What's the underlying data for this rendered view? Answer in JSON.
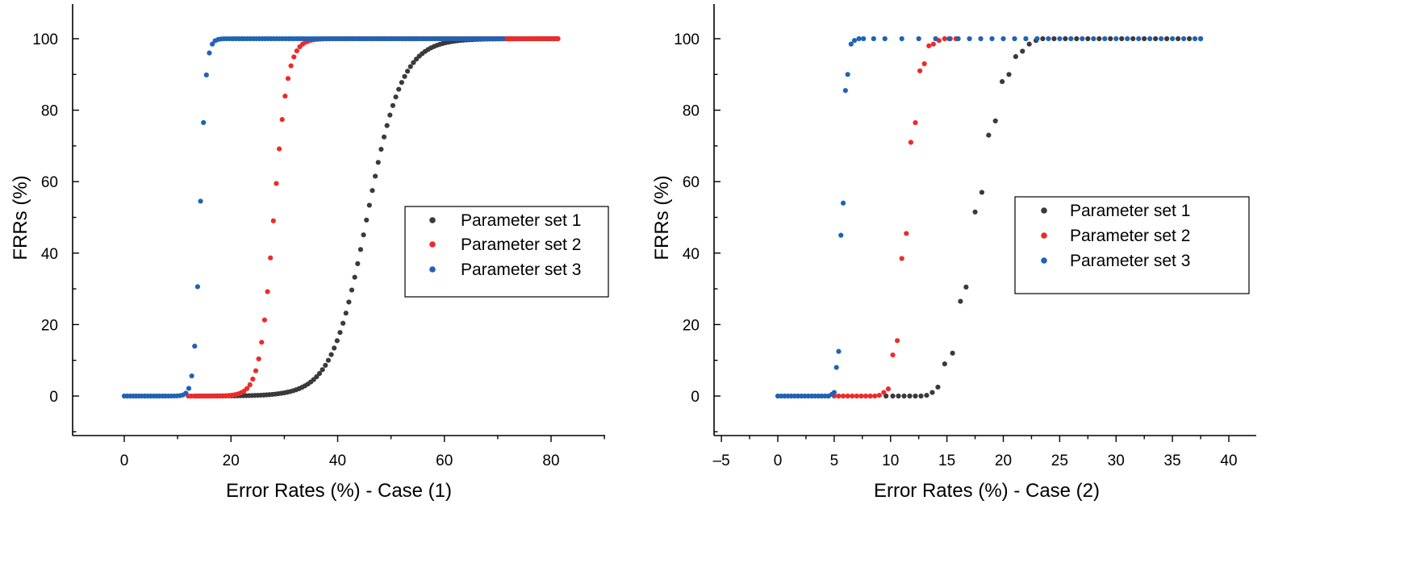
{
  "colors": {
    "series_1": "#3a3a3a",
    "series_2": "#ee2a2a",
    "series_3": "#1f63b4",
    "axis": "#000000"
  },
  "chart_data": [
    {
      "type": "scatter",
      "title": "",
      "xlabel": "Error Rates (%) - Case (1)",
      "ylabel": "FRRs (%)",
      "xlim": [
        -10,
        90
      ],
      "ylim": [
        -10,
        110
      ],
      "xticks": [
        0,
        20,
        40,
        60,
        80
      ],
      "yticks": [
        0,
        20,
        40,
        60,
        80,
        100
      ],
      "xtick_labels": [
        "0",
        "20",
        "40",
        "60",
        "80"
      ],
      "ytick_labels": [
        "0",
        "20",
        "40",
        "60",
        "80",
        "100"
      ],
      "legend_position": "center-right",
      "series": [
        {
          "name": "Parameter set 1",
          "color_key": "series_1",
          "curve": {
            "x_start": 13.5,
            "x_end": 81.5,
            "step": 0.55,
            "center": 45.5,
            "scale": 3.3
          }
        },
        {
          "name": "Parameter set 2",
          "color_key": "series_2",
          "curve": {
            "x_start": 12.0,
            "x_end": 81.5,
            "step": 0.55,
            "center": 28.0,
            "scale": 1.3
          }
        },
        {
          "name": "Parameter set 3",
          "color_key": "series_3",
          "curve": {
            "x_start": 0.0,
            "x_end": 71.0,
            "step": 0.55,
            "center": 14.2,
            "scale": 0.55
          }
        }
      ]
    },
    {
      "type": "scatter",
      "title": "",
      "xlabel": "Error Rates (%) - Case (2)",
      "ylabel": "FRRs (%)",
      "xlim": [
        -5,
        42.5
      ],
      "ylim": [
        -10,
        110
      ],
      "xticks": [
        -5,
        0,
        5,
        10,
        15,
        20,
        25,
        30,
        35,
        40
      ],
      "yticks": [
        0,
        20,
        40,
        60,
        80,
        100
      ],
      "xtick_labels": [
        "–5",
        "0",
        "5",
        "10",
        "15",
        "20",
        "25",
        "30",
        "35",
        "40"
      ],
      "ytick_labels": [
        "0",
        "20",
        "40",
        "60",
        "80",
        "100"
      ],
      "legend_position": "center-right",
      "series": [
        {
          "name": "Parameter set 1",
          "color_key": "series_1",
          "points": [
            [
              9.6,
              0
            ],
            [
              10.2,
              0
            ],
            [
              10.7,
              0
            ],
            [
              11.2,
              0
            ],
            [
              11.7,
              0
            ],
            [
              12.2,
              0
            ],
            [
              12.7,
              0
            ],
            [
              13.2,
              0.2
            ],
            [
              13.7,
              1
            ],
            [
              14.2,
              2.5
            ],
            [
              14.8,
              9
            ],
            [
              15.5,
              12
            ],
            [
              16.2,
              26.5
            ],
            [
              16.7,
              30.5
            ],
            [
              17.5,
              51.5
            ],
            [
              18.1,
              57
            ],
            [
              18.7,
              73
            ],
            [
              19.3,
              77
            ],
            [
              19.9,
              88
            ],
            [
              20.5,
              90
            ],
            [
              21.1,
              95
            ],
            [
              21.7,
              96.5
            ],
            [
              22.3,
              98.5
            ],
            [
              22.9,
              99.5
            ],
            [
              23.5,
              100
            ],
            [
              24.5,
              100
            ],
            [
              25.5,
              100
            ],
            [
              26.5,
              100
            ],
            [
              27.5,
              100
            ],
            [
              28.5,
              100
            ],
            [
              29.5,
              100
            ],
            [
              30.5,
              100
            ],
            [
              31.5,
              100
            ],
            [
              32.5,
              100
            ],
            [
              33.5,
              100
            ],
            [
              34.5,
              100
            ],
            [
              35.5,
              100
            ],
            [
              36.5,
              100
            ],
            [
              37.5,
              100
            ]
          ]
        },
        {
          "name": "Parameter set 2",
          "color_key": "series_2",
          "points": [
            [
              5,
              0
            ],
            [
              5.4,
              0
            ],
            [
              5.8,
              0
            ],
            [
              6.2,
              0
            ],
            [
              6.6,
              0
            ],
            [
              7,
              0
            ],
            [
              7.4,
              0
            ],
            [
              7.8,
              0
            ],
            [
              8.2,
              0
            ],
            [
              8.6,
              0
            ],
            [
              9,
              0.2
            ],
            [
              9.4,
              1
            ],
            [
              9.8,
              2
            ],
            [
              10.2,
              11.5
            ],
            [
              10.6,
              15.5
            ],
            [
              11,
              38.5
            ],
            [
              11.4,
              45.5
            ],
            [
              11.8,
              71
            ],
            [
              12.2,
              76.5
            ],
            [
              12.6,
              91
            ],
            [
              13,
              93
            ],
            [
              13.4,
              98
            ],
            [
              13.8,
              98.5
            ],
            [
              14.3,
              99.5
            ],
            [
              14.8,
              100
            ],
            [
              15.3,
              100
            ],
            [
              15.8,
              100
            ]
          ]
        },
        {
          "name": "Parameter set 3",
          "color_key": "series_3",
          "points": [
            [
              0,
              0
            ],
            [
              0.3,
              0
            ],
            [
              0.6,
              0
            ],
            [
              0.9,
              0
            ],
            [
              1.2,
              0
            ],
            [
              1.5,
              0
            ],
            [
              1.8,
              0
            ],
            [
              2.1,
              0
            ],
            [
              2.4,
              0
            ],
            [
              2.7,
              0
            ],
            [
              3,
              0
            ],
            [
              3.3,
              0
            ],
            [
              3.6,
              0
            ],
            [
              3.9,
              0
            ],
            [
              4.2,
              0
            ],
            [
              4.5,
              0
            ],
            [
              4.8,
              0.5
            ],
            [
              5,
              1
            ],
            [
              5.2,
              8
            ],
            [
              5.4,
              12.5
            ],
            [
              5.6,
              45
            ],
            [
              5.8,
              54
            ],
            [
              6,
              85.5
            ],
            [
              6.2,
              90
            ],
            [
              6.5,
              98.5
            ],
            [
              6.8,
              99.5
            ],
            [
              7.2,
              100
            ],
            [
              7.6,
              100
            ],
            [
              8.5,
              100
            ],
            [
              9.5,
              100
            ],
            [
              11,
              100
            ],
            [
              12.5,
              100
            ],
            [
              14,
              100
            ],
            [
              15.2,
              100
            ],
            [
              16,
              100
            ],
            [
              17,
              100
            ],
            [
              18,
              100
            ],
            [
              19,
              100
            ],
            [
              20,
              100
            ],
            [
              21,
              100
            ],
            [
              22,
              100
            ],
            [
              23,
              100
            ],
            [
              24,
              100
            ],
            [
              25,
              100
            ],
            [
              26,
              100
            ],
            [
              27,
              100
            ],
            [
              28,
              100
            ],
            [
              29,
              100
            ],
            [
              30,
              100
            ],
            [
              31,
              100
            ],
            [
              32,
              100
            ],
            [
              33,
              100
            ],
            [
              34,
              100
            ],
            [
              35,
              100
            ],
            [
              36,
              100
            ],
            [
              37,
              100
            ],
            [
              37.5,
              100
            ]
          ]
        }
      ]
    }
  ]
}
